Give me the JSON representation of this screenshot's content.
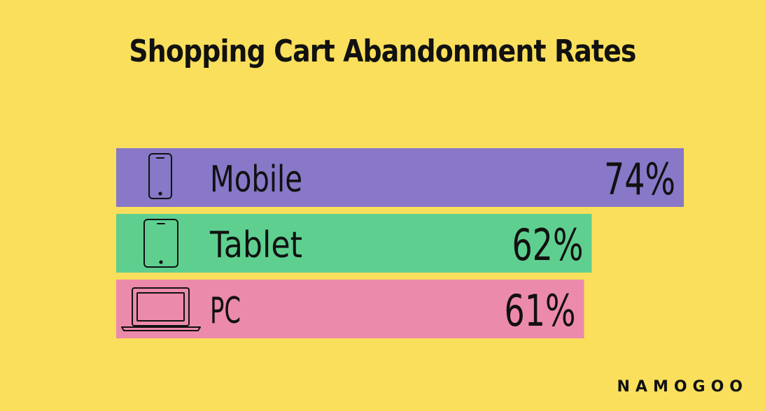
{
  "chart_data": {
    "type": "bar",
    "orientation": "horizontal",
    "title": "Shopping Cart Abandonment Rates",
    "categories": [
      "Mobile",
      "Tablet",
      "PC"
    ],
    "values": [
      74,
      62,
      61
    ],
    "value_labels": [
      "74%",
      "62%",
      "61%"
    ],
    "icons": [
      "smartphone-icon",
      "tablet-icon",
      "laptop-icon"
    ],
    "colors": [
      "#8878c7",
      "#5fcf8f",
      "#ec8aab"
    ],
    "xlim": [
      0,
      74
    ],
    "grid": false
  },
  "logo_text": "NAMOGOO",
  "background": "#f9df5b"
}
